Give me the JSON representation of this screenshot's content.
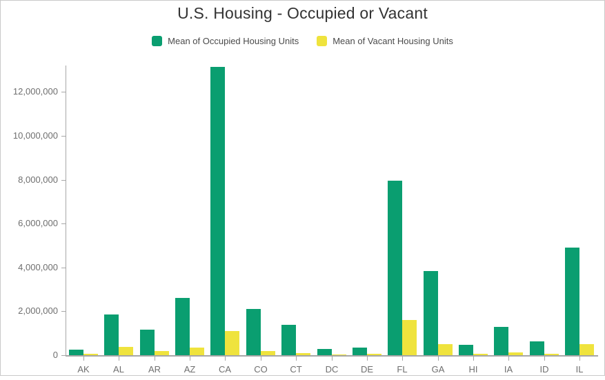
{
  "title": "U.S. Housing - Occupied or Vacant",
  "legend": {
    "items": [
      {
        "key": "occupied",
        "label": "Mean of Occupied Housing Units",
        "color": "#0a9e70"
      },
      {
        "key": "vacant",
        "label": "Mean of Vacant Housing Units",
        "color": "#efe33d"
      }
    ]
  },
  "chart_data": {
    "type": "bar",
    "title": "U.S. Housing - Occupied or Vacant",
    "categories": [
      "AK",
      "AL",
      "AR",
      "AZ",
      "CA",
      "CO",
      "CT",
      "DC",
      "DE",
      "FL",
      "GA",
      "HI",
      "IA",
      "ID",
      "IL"
    ],
    "series": [
      {
        "key": "occupied",
        "name": "Mean of Occupied Housing Units",
        "color": "#0a9e70",
        "values": [
          250000,
          1860000,
          1150000,
          2600000,
          13150000,
          2110000,
          1380000,
          270000,
          340000,
          7950000,
          3830000,
          470000,
          1280000,
          630000,
          4900000
        ]
      },
      {
        "key": "vacant",
        "name": "Mean of Vacant Housing Units",
        "color": "#efe33d",
        "values": [
          65000,
          370000,
          180000,
          360000,
          1100000,
          200000,
          110000,
          25000,
          50000,
          1600000,
          490000,
          55000,
          130000,
          70000,
          500000
        ]
      }
    ],
    "xlabel": "",
    "ylabel": "",
    "ylim": [
      0,
      13200000
    ],
    "y_ticks": [
      0,
      2000000,
      4000000,
      6000000,
      8000000,
      10000000,
      12000000
    ],
    "y_tick_labels": [
      "0",
      "2,000,000",
      "4,000,000",
      "6,000,000",
      "8,000,000",
      "10,000,000",
      "12,000,000"
    ],
    "grid": false,
    "legend_position": "top"
  },
  "colors": {
    "occupied": "#0a9e70",
    "vacant": "#efe33d",
    "axis": "#a6a6a6",
    "tick_label_text": "#6e6e6e",
    "title_text": "#333333",
    "legend_text": "#4a4a4a",
    "border": "#c9c9c9",
    "background": "#ffffff"
  }
}
